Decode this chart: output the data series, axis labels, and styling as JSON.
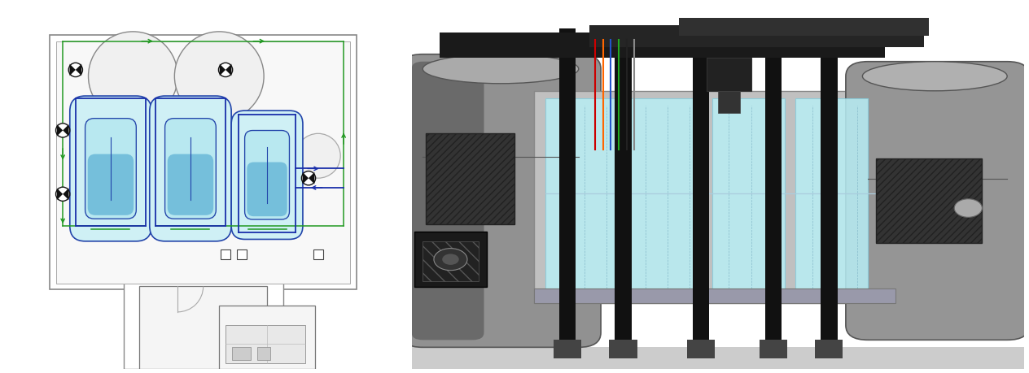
{
  "figsize": [
    12.64,
    4.6
  ],
  "dpi": 100,
  "background_color": "#ffffff",
  "left_bg": "#ffffff",
  "right_bg": "#ffffff"
}
